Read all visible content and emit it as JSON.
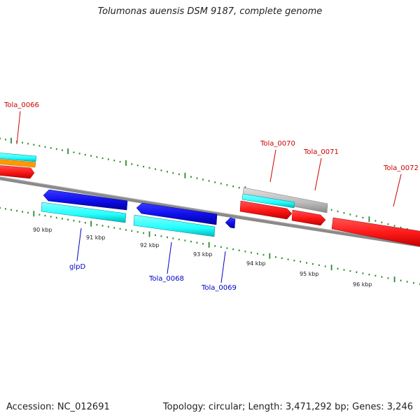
{
  "title": "Tolumonas auensis DSM 9187, complete genome",
  "footer": {
    "accession": "Accession: NC_012691",
    "summary": "Topology: circular; Length: 3,471,292 bp; Genes: 3,246"
  },
  "scale_labels": [
    "90 kbp",
    "91 kbp",
    "92 kbp",
    "93 kbp",
    "94 kbp",
    "95 kbp",
    "96 kbp"
  ],
  "gene_labels": [
    "Tola_0066",
    "Tola_0070",
    "Tola_0071",
    "Tola_0072",
    "glpD",
    "Tola_0068",
    "Tola_0069"
  ],
  "colors": {
    "forward_label": "#cc0000",
    "reverse_label": "#0000cc",
    "tick": "#2a8a2a",
    "backbone": "#808080",
    "red_feature": "#ff1a1a",
    "blue_feature": "#1010ee",
    "cyan_feature": "#22ffff",
    "orange_feature": "#ff9900",
    "grey_feature": "#bbbbbb"
  }
}
